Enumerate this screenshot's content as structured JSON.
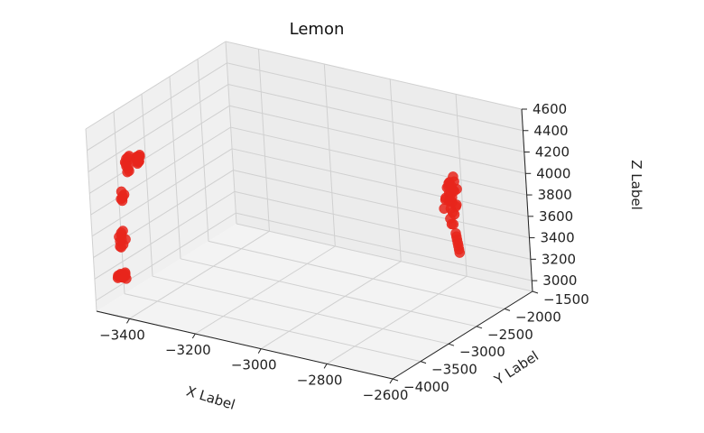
{
  "chart_data": {
    "type": "scatter",
    "projection": "3d",
    "title": "Lemon",
    "xlabel": "X Label",
    "ylabel": "Y Label",
    "zlabel": "Z Label",
    "xlim": [
      -3500,
      -2600
    ],
    "ylim": [
      -4000,
      -1500
    ],
    "zlim": [
      2900,
      4600
    ],
    "grid": true,
    "marker_color": "#e8261c",
    "x_ticks": [
      "−3400",
      "−3200",
      "−3000",
      "−2800",
      "−2600"
    ],
    "y_ticks": [
      "−4000",
      "−3500",
      "−3000",
      "−2500",
      "−2000",
      "−1500"
    ],
    "z_ticks": [
      "3000",
      "3200",
      "3400",
      "3600",
      "3800",
      "4000",
      "4200",
      "4400",
      "4600"
    ],
    "series": [
      {
        "x": [
          -3470,
          -3475,
          -3468,
          -3480,
          -3472,
          -3465,
          -3478,
          -3460,
          -3470,
          -3463,
          -3475,
          -3466,
          -3458,
          -3472,
          -3469,
          -3455,
          -3467,
          -3461,
          -3474,
          -3459,
          -3475,
          -3479,
          -3470,
          -3466,
          -3473,
          -3477,
          -3468,
          -3462,
          -3471,
          -3476,
          -3472,
          -3468,
          -3475,
          -3470,
          -3466,
          -3473,
          -3460,
          -3455,
          -3465,
          -3458,
          -3462,
          -3452,
          -3468,
          -3456,
          -3450,
          -3463,
          -3440,
          -3435,
          -3445,
          -3438,
          -3442,
          -3432,
          -3448,
          -3436,
          -3430,
          -3443,
          -3428,
          -3437,
          -2760,
          -2770,
          -2755,
          -2765,
          -2750,
          -2775,
          -2760,
          -2745,
          -2768,
          -2752,
          -2758,
          -2763,
          -2748,
          -2772,
          -2757,
          -2762,
          -2753,
          -2767,
          -2750,
          -2770,
          -2760,
          -2745,
          -2755,
          -2765,
          -2758,
          -2762,
          -2740,
          -2735,
          -2730,
          -2725,
          -2720,
          -2715,
          -2710,
          -2780,
          -2776
        ],
        "y": [
          -3700,
          -3720,
          -3690,
          -3710,
          -3705,
          -3695,
          -3715,
          -3700,
          -3685,
          -3710,
          -3725,
          -3698,
          -3702,
          -3712,
          -3693,
          -3707,
          -3718,
          -3688,
          -3704,
          -3696,
          -3650,
          -3640,
          -3660,
          -3655,
          -3645,
          -3665,
          -3650,
          -3640,
          -3658,
          -3662,
          -3600,
          -3610,
          -3590,
          -3605,
          -3595,
          -3615,
          -3550,
          -3560,
          -3540,
          -3555,
          -3545,
          -3565,
          -3535,
          -3550,
          -3560,
          -3545,
          -3480,
          -3490,
          -3470,
          -3485,
          -3475,
          -3495,
          -3465,
          -3480,
          -3490,
          -3475,
          -3500,
          -3470,
          -1900,
          -1950,
          -1880,
          -1920,
          -1900,
          -1960,
          -1930,
          -1890,
          -1910,
          -1940,
          -1870,
          -1925,
          -1905,
          -1945,
          -1885,
          -1915,
          -1935,
          -1895,
          -1955,
          -1875,
          -1930,
          -1910,
          -1900,
          -1920,
          -1940,
          -1890,
          -1980,
          -2000,
          -2020,
          -2040,
          -2060,
          -2080,
          -2100,
          -1860,
          -1850
        ],
        "z": [
          3140,
          3150,
          3160,
          3130,
          3170,
          3145,
          3155,
          3165,
          3135,
          3175,
          3150,
          3140,
          3180,
          3160,
          3150,
          3140,
          3170,
          3155,
          3145,
          3190,
          3400,
          3450,
          3520,
          3560,
          3470,
          3500,
          3430,
          3480,
          3540,
          3410,
          3820,
          3870,
          3900,
          3850,
          3880,
          3840,
          4080,
          4120,
          4150,
          4180,
          4200,
          4100,
          4160,
          4220,
          4240,
          4130,
          4150,
          4170,
          4190,
          4200,
          4210,
          4180,
          4160,
          4220,
          4240,
          4190,
          4230,
          4175,
          3750,
          3800,
          3850,
          3900,
          3950,
          3700,
          3820,
          3880,
          3760,
          3920,
          3980,
          3840,
          3720,
          3780,
          3860,
          3940,
          3810,
          3760,
          3680,
          3900,
          3700,
          3740,
          3640,
          3600,
          3560,
          3540,
          3500,
          3480,
          3460,
          3440,
          3420,
          3400,
          3380,
          3860,
          3900
        ]
      }
    ]
  }
}
